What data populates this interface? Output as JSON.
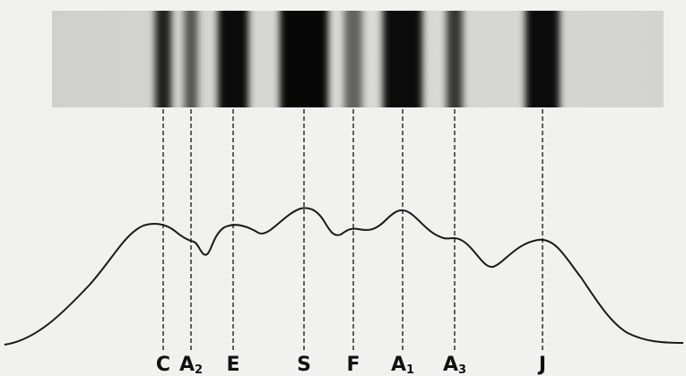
{
  "bands": [
    {
      "letter": "C"
    },
    {
      "letter": "A",
      "sub": "2"
    },
    {
      "letter": "E"
    },
    {
      "letter": "S"
    },
    {
      "letter": "F"
    },
    {
      "letter": "A",
      "sub": "1"
    },
    {
      "letter": "A",
      "sub": "3"
    },
    {
      "letter": "J"
    }
  ]
}
